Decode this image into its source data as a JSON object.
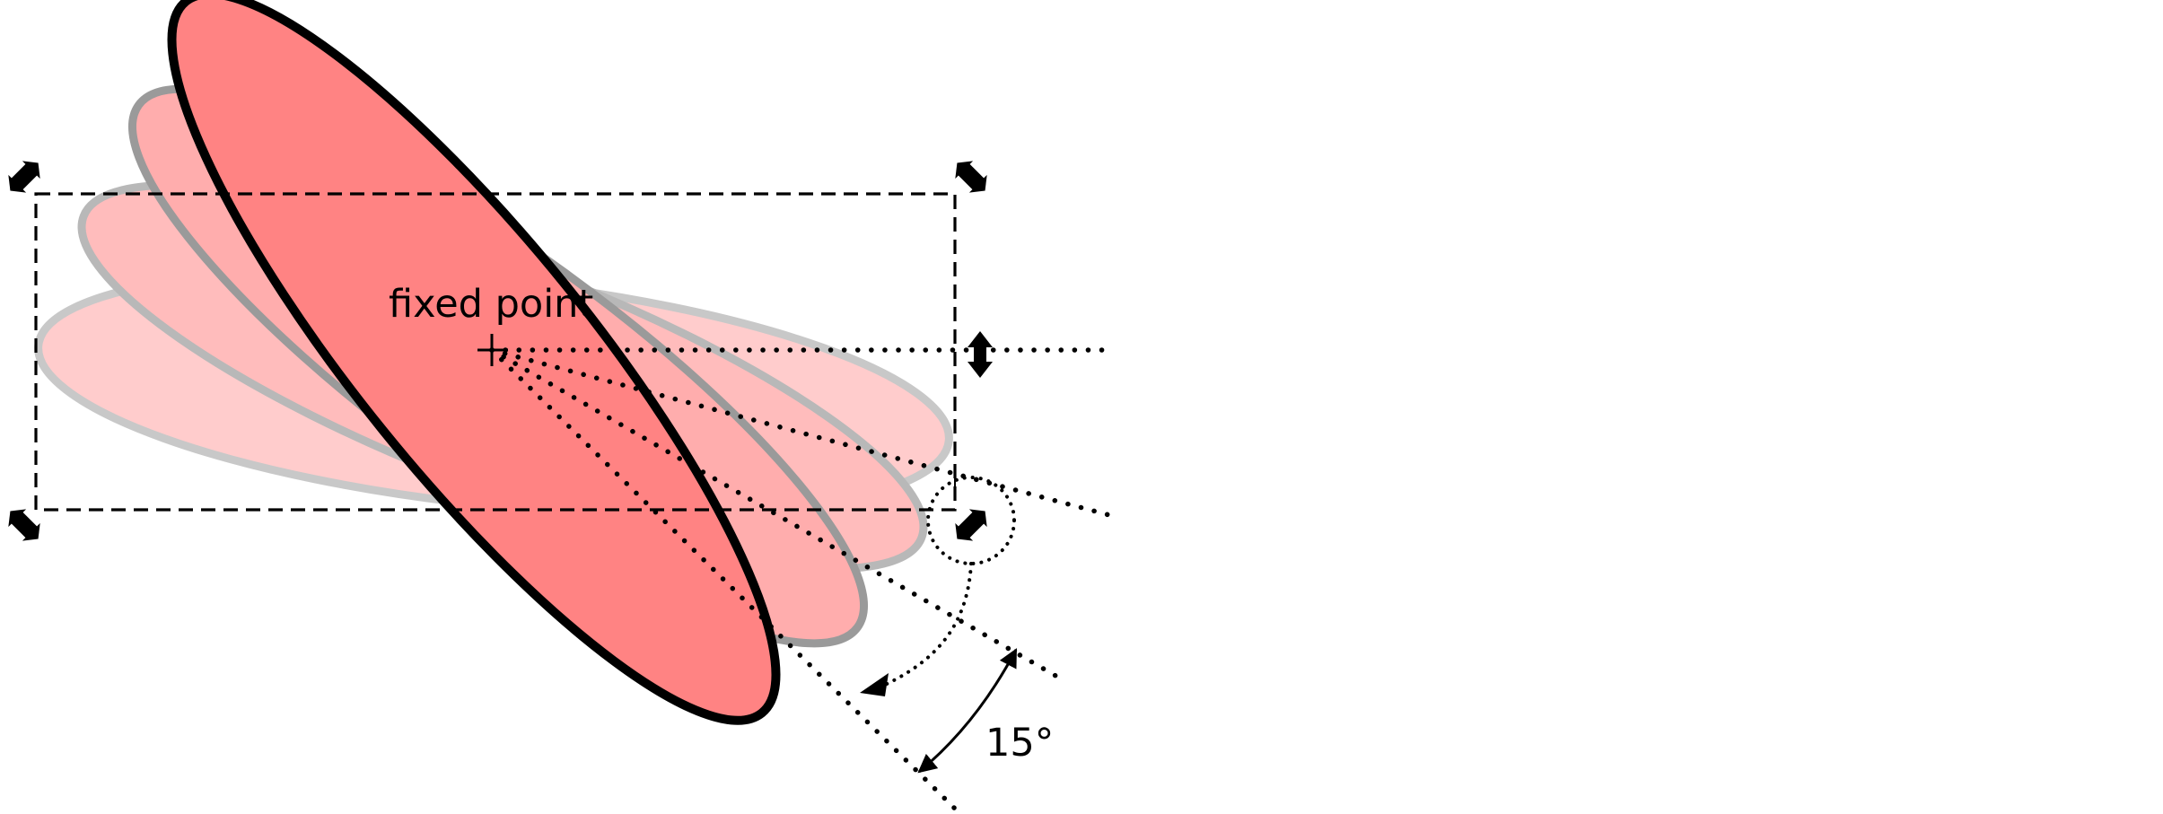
{
  "diagram": {
    "fixed_point_label": "fixed point",
    "angle_label": "15°",
    "rotation_step_degrees": 15,
    "colors": {
      "active_fill": "#ff8383",
      "active_stroke": "#000000",
      "ghost_fill": "#ffb3b3",
      "ghost_stroke": "#a0a0a0",
      "background": "#ffffff"
    }
  }
}
